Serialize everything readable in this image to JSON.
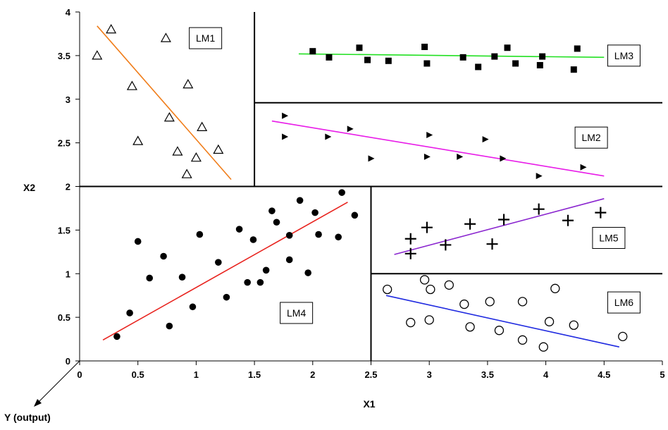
{
  "chart_data": {
    "type": "scatter",
    "xlabel": "X1",
    "ylabel": "X2",
    "zlabel": "Y (output)",
    "xlim": [
      0,
      5
    ],
    "ylim": [
      0,
      4
    ],
    "x_ticks": [
      0,
      0.5,
      1,
      1.5,
      2,
      2.5,
      3,
      3.5,
      4,
      4.5,
      5
    ],
    "y_ticks": [
      0,
      0.5,
      1,
      1.5,
      2,
      2.5,
      3,
      3.5,
      4
    ],
    "partition_lines": [
      {
        "from": [
          0,
          2
        ],
        "to": [
          5,
          2
        ]
      },
      {
        "from": [
          1.5,
          2
        ],
        "to": [
          1.5,
          4
        ]
      },
      {
        "from": [
          1.5,
          2.96
        ],
        "to": [
          5,
          2.96
        ]
      },
      {
        "from": [
          2.5,
          0
        ],
        "to": [
          2.5,
          2
        ]
      },
      {
        "from": [
          2.5,
          1
        ],
        "to": [
          5,
          1
        ]
      }
    ],
    "models": [
      {
        "label": "LM1",
        "marker": "triangle-open",
        "line_color": "#f07d1a",
        "label_at": [
          1.08,
          3.7
        ],
        "fit": {
          "from": [
            0.15,
            3.84
          ],
          "to": [
            1.3,
            2.08
          ]
        },
        "points": [
          [
            0.15,
            3.5
          ],
          [
            0.27,
            3.8
          ],
          [
            0.74,
            3.7
          ],
          [
            0.45,
            3.15
          ],
          [
            0.93,
            3.17
          ],
          [
            0.77,
            2.79
          ],
          [
            1.05,
            2.68
          ],
          [
            0.5,
            2.52
          ],
          [
            0.84,
            2.4
          ],
          [
            1.19,
            2.42
          ],
          [
            1.0,
            2.33
          ],
          [
            0.92,
            2.14
          ]
        ]
      },
      {
        "label": "LM3",
        "marker": "square-filled",
        "line_color": "#22e022",
        "label_at": [
          4.67,
          3.5
        ],
        "fit": {
          "from": [
            1.88,
            3.52
          ],
          "to": [
            4.5,
            3.48
          ]
        },
        "points": [
          [
            2.0,
            3.55
          ],
          [
            2.14,
            3.48
          ],
          [
            2.4,
            3.59
          ],
          [
            2.47,
            3.45
          ],
          [
            2.65,
            3.44
          ],
          [
            2.96,
            3.6
          ],
          [
            2.98,
            3.41
          ],
          [
            3.29,
            3.48
          ],
          [
            3.42,
            3.37
          ],
          [
            3.56,
            3.49
          ],
          [
            3.67,
            3.59
          ],
          [
            3.74,
            3.41
          ],
          [
            3.95,
            3.39
          ],
          [
            3.97,
            3.49
          ],
          [
            4.24,
            3.34
          ],
          [
            4.27,
            3.58
          ]
        ]
      },
      {
        "label": "LM2",
        "marker": "triangle-right-filled",
        "line_color": "#e81ce8",
        "label_at": [
          4.39,
          2.56
        ],
        "fit": {
          "from": [
            1.65,
            2.75
          ],
          "to": [
            4.5,
            2.12
          ]
        },
        "points": [
          [
            1.76,
            2.81
          ],
          [
            1.76,
            2.57
          ],
          [
            2.13,
            2.57
          ],
          [
            2.32,
            2.66
          ],
          [
            2.5,
            2.32
          ],
          [
            3.0,
            2.59
          ],
          [
            2.98,
            2.34
          ],
          [
            3.26,
            2.34
          ],
          [
            3.48,
            2.54
          ],
          [
            3.63,
            2.32
          ],
          [
            3.94,
            2.12
          ],
          [
            4.32,
            2.22
          ]
        ]
      },
      {
        "label": "LM4",
        "marker": "circle-filled",
        "line_color": "#e8231e",
        "label_at": [
          1.86,
          0.55
        ],
        "fit": {
          "from": [
            0.2,
            0.24
          ],
          "to": [
            2.3,
            1.82
          ]
        },
        "points": [
          [
            0.32,
            0.28
          ],
          [
            0.43,
            0.55
          ],
          [
            0.5,
            1.37
          ],
          [
            0.6,
            0.95
          ],
          [
            0.72,
            1.2
          ],
          [
            0.77,
            0.4
          ],
          [
            0.88,
            0.96
          ],
          [
            0.97,
            0.62
          ],
          [
            1.03,
            1.45
          ],
          [
            1.19,
            1.13
          ],
          [
            1.26,
            0.73
          ],
          [
            1.37,
            1.51
          ],
          [
            1.44,
            0.9
          ],
          [
            1.49,
            1.39
          ],
          [
            1.55,
            0.9
          ],
          [
            1.6,
            1.04
          ],
          [
            1.65,
            1.72
          ],
          [
            1.69,
            1.59
          ],
          [
            1.8,
            1.44
          ],
          [
            1.8,
            1.16
          ],
          [
            1.89,
            1.84
          ],
          [
            1.96,
            1.01
          ],
          [
            2.02,
            1.7
          ],
          [
            2.05,
            1.45
          ],
          [
            2.22,
            1.42
          ],
          [
            2.25,
            1.93
          ],
          [
            2.36,
            1.67
          ]
        ]
      },
      {
        "label": "LM5",
        "marker": "plus",
        "line_color": "#8a25cf",
        "label_at": [
          4.54,
          1.41
        ],
        "fit": {
          "from": [
            2.7,
            1.22
          ],
          "to": [
            4.5,
            1.86
          ]
        },
        "points": [
          [
            2.84,
            1.4
          ],
          [
            2.84,
            1.23
          ],
          [
            2.98,
            1.53
          ],
          [
            3.14,
            1.33
          ],
          [
            3.35,
            1.57
          ],
          [
            3.54,
            1.34
          ],
          [
            3.64,
            1.62
          ],
          [
            3.94,
            1.74
          ],
          [
            4.19,
            1.61
          ],
          [
            4.47,
            1.7
          ]
        ]
      },
      {
        "label": "LM6",
        "marker": "circle-open",
        "line_color": "#1f2ae0",
        "label_at": [
          4.67,
          0.67
        ],
        "fit": {
          "from": [
            2.63,
            0.75
          ],
          "to": [
            4.63,
            0.16
          ]
        },
        "points": [
          [
            2.64,
            0.82
          ],
          [
            2.84,
            0.44
          ],
          [
            2.96,
            0.93
          ],
          [
            3.0,
            0.47
          ],
          [
            3.01,
            0.82
          ],
          [
            3.17,
            0.87
          ],
          [
            3.3,
            0.65
          ],
          [
            3.35,
            0.39
          ],
          [
            3.52,
            0.68
          ],
          [
            3.6,
            0.35
          ],
          [
            3.8,
            0.24
          ],
          [
            3.8,
            0.68
          ],
          [
            3.98,
            0.16
          ],
          [
            4.03,
            0.45
          ],
          [
            4.08,
            0.83
          ],
          [
            4.24,
            0.41
          ],
          [
            4.66,
            0.28
          ]
        ]
      }
    ]
  }
}
